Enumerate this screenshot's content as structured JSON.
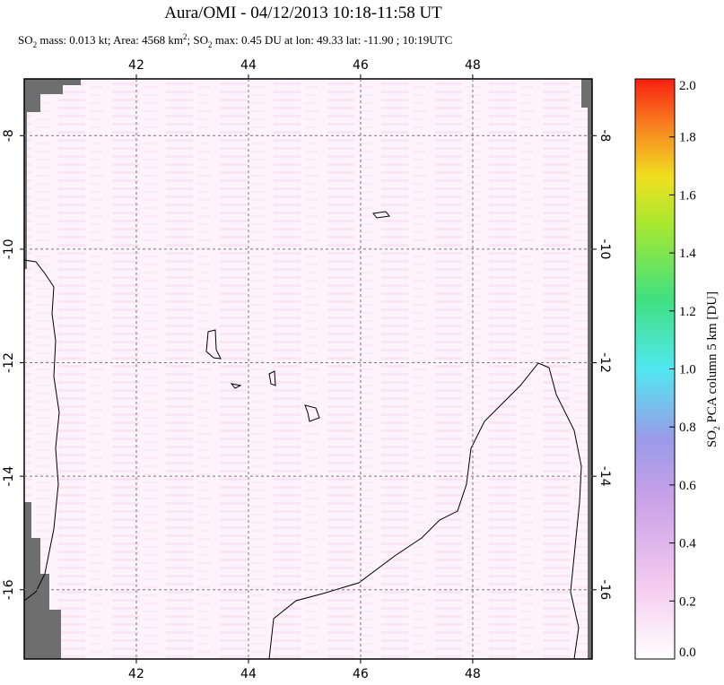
{
  "header": {
    "title": "Aura/OMI - 04/12/2013 10:18-11:58 UT",
    "subtitle": [
      "SO",
      "2",
      " mass: 0.013 kt; Area: 4568 km",
      "2",
      "; SO",
      "2",
      " max: 0.45 DU at lon: 49.33 lat: -11.90 ; 10:19UTC"
    ]
  },
  "map": {
    "lon_range": [
      40,
      50.13
    ],
    "lat_range": [
      -17.22,
      -7
    ],
    "xticks": [
      42,
      44,
      46,
      48
    ],
    "yticks": [
      -8,
      -10,
      -12,
      -14,
      -16
    ]
  },
  "colorbar": {
    "label": [
      "SO",
      "2",
      " PCA column 5 km [DU]"
    ],
    "range": [
      0,
      2
    ],
    "ticks": [
      {
        "value": 0,
        "label": "0.0"
      },
      {
        "value": 0.2,
        "label": "0.2"
      },
      {
        "value": 0.4,
        "label": "0.4"
      },
      {
        "value": 0.6,
        "label": "0.6"
      },
      {
        "value": 0.8,
        "label": "0.8"
      },
      {
        "value": 1,
        "label": "1.0"
      },
      {
        "value": 1.2,
        "label": "1.2"
      },
      {
        "value": 1.4,
        "label": "1.4"
      },
      {
        "value": 1.6,
        "label": "1.6"
      },
      {
        "value": 1.8,
        "label": "1.8"
      },
      {
        "value": 2,
        "label": "2.0"
      }
    ]
  }
}
